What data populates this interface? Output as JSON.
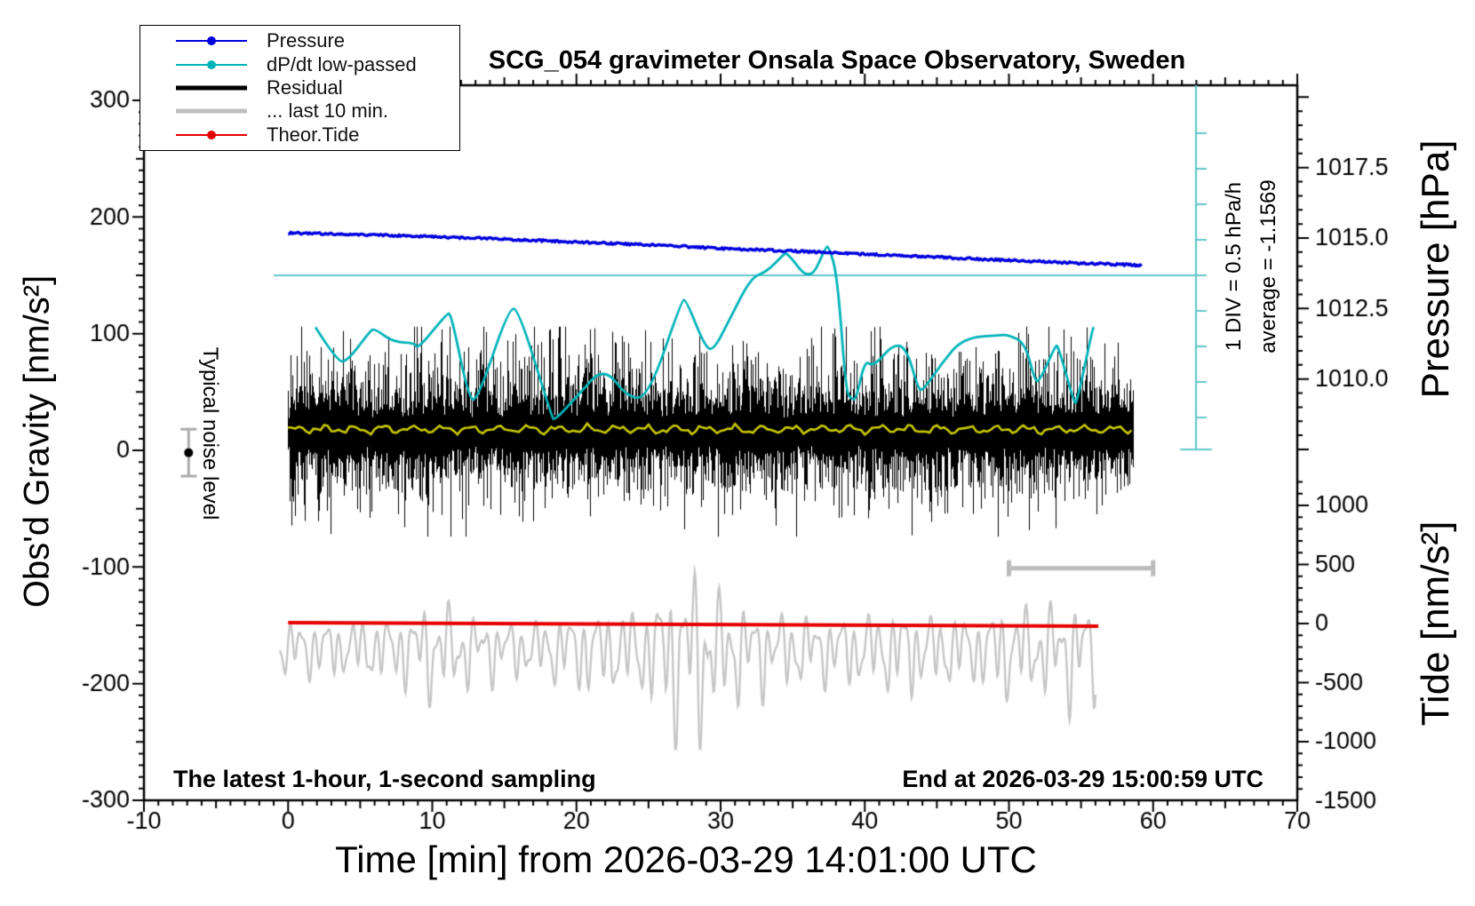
{
  "title": "SCG_054 gravimeter Onsala Space Observatory, Sweden",
  "legend": {
    "items": [
      {
        "label": "Pressure",
        "color": "#0000dd",
        "style": "marker"
      },
      {
        "label": "dP/dt low-passed",
        "color": "#00b3b8",
        "style": "marker"
      },
      {
        "label": "Residual",
        "color": "#000000",
        "style": "thick"
      },
      {
        "label": "... last 10 min.",
        "color": "#c0c0c0",
        "style": "thick"
      },
      {
        "label": "Theor.Tide",
        "color": "#e60000",
        "style": "marker"
      }
    ]
  },
  "axes": {
    "x": {
      "title": "Time [min] from 2026-03-29 14:01:00 UTC",
      "min": -10,
      "max": 70,
      "major": 10,
      "medium": 5,
      "minor": 1,
      "labels": [
        "-10",
        "0",
        "10",
        "20",
        "30",
        "40",
        "50",
        "60",
        "70"
      ]
    },
    "gravity": {
      "title": "Obs'd Gravity [nm/s²]",
      "min": -300,
      "max": 300,
      "major": 100,
      "minor": 10,
      "labels": [
        "300",
        "200",
        "100",
        "0",
        "-100",
        "-200",
        "-300"
      ]
    },
    "pressure": {
      "title": "Pressure [hPa]",
      "major": 2.5,
      "minor": 0.5,
      "labels": [
        "1017.5",
        "1015.0",
        "1012.5",
        "1010.0"
      ]
    },
    "tide": {
      "title": "Tide [nm/s²]",
      "major": 500,
      "minor": 100,
      "labels": [
        "1000",
        "500",
        "0",
        "-500",
        "-1000",
        "-1500"
      ]
    }
  },
  "annotations": {
    "noise_level": "Typical noise level",
    "div_scale": "1 DIV = 0.5 hPa/h",
    "average": "average = -1.1569",
    "sampling_note": "The latest 1-hour, 1-second sampling",
    "end_note": "End at 2026-03-29 15:00:59 UTC"
  },
  "chart_data": {
    "type": "line",
    "x_range_min": [
      -10,
      70
    ],
    "gravity_range": [
      -300,
      300
    ],
    "grid": false,
    "legend_position": "top-left",
    "series": [
      {
        "name": "Pressure",
        "unit": "hPa",
        "color": "#0000dd",
        "points": [
          [
            0,
            1015.18
          ],
          [
            5,
            1015.12
          ],
          [
            10,
            1015.05
          ],
          [
            15,
            1014.96
          ],
          [
            20,
            1014.86
          ],
          [
            25,
            1014.76
          ],
          [
            30,
            1014.63
          ],
          [
            35,
            1014.54
          ],
          [
            40,
            1014.43
          ],
          [
            45,
            1014.32
          ],
          [
            50,
            1014.21
          ],
          [
            55,
            1014.11
          ],
          [
            59.3,
            1014.03
          ]
        ]
      },
      {
        "name": "dP/dt low-passed",
        "unit": "hPa/h",
        "color": "#00b3b8",
        "div_hpa_per_h": 0.5,
        "points": [
          [
            1.9,
            -0.73
          ],
          [
            3.4,
            -1.21
          ],
          [
            4.1,
            -1.21
          ],
          [
            5.7,
            -0.78
          ],
          [
            6.0,
            -0.75
          ],
          [
            7.3,
            -0.94
          ],
          [
            8.8,
            -0.95
          ],
          [
            9.0,
            -1.04
          ],
          [
            11.0,
            -0.54
          ],
          [
            11.3,
            -0.53
          ],
          [
            12.5,
            -1.71
          ],
          [
            13.1,
            -1.78
          ],
          [
            15.3,
            -0.46
          ],
          [
            16.0,
            -0.48
          ],
          [
            18.3,
            -2.0
          ],
          [
            18.5,
            -2.04
          ],
          [
            20.1,
            -1.69
          ],
          [
            21.9,
            -1.28
          ],
          [
            23.6,
            -1.73
          ],
          [
            25.0,
            -1.71
          ],
          [
            27.3,
            -0.35
          ],
          [
            27.6,
            -0.34
          ],
          [
            28.9,
            -1.0
          ],
          [
            29.5,
            -1.06
          ],
          [
            30.6,
            -0.63
          ],
          [
            32.1,
            -0.03
          ],
          [
            33.2,
            0.05
          ],
          [
            34.3,
            0.28
          ],
          [
            34.6,
            0.33
          ],
          [
            36.2,
            -0.1
          ],
          [
            37.3,
            0.4
          ],
          [
            37.5,
            0.41
          ],
          [
            38.1,
            0.0
          ],
          [
            38.7,
            -1.65
          ],
          [
            39.1,
            -1.74
          ],
          [
            39.4,
            -1.75
          ],
          [
            40.0,
            -1.19
          ],
          [
            40.6,
            -1.29
          ],
          [
            42.0,
            -0.96
          ],
          [
            42.9,
            -1.03
          ],
          [
            43.7,
            -1.59
          ],
          [
            44.0,
            -1.63
          ],
          [
            45.3,
            -1.25
          ],
          [
            46.8,
            -0.88
          ],
          [
            49.5,
            -0.84
          ],
          [
            49.9,
            -0.84
          ],
          [
            51.1,
            -0.94
          ],
          [
            51.8,
            -1.48
          ],
          [
            52.1,
            -1.5
          ],
          [
            53.2,
            -1.0
          ],
          [
            53.4,
            -0.98
          ],
          [
            54.5,
            -1.78
          ],
          [
            54.7,
            -1.81
          ],
          [
            55.8,
            -0.75
          ],
          [
            55.9,
            -0.73
          ]
        ]
      },
      {
        "name": "Residual",
        "unit": "nm/s2",
        "color": "#000000",
        "band": {
          "t_start": 0,
          "t_end": 58.6,
          "mean": 15,
          "sigma": 27,
          "max": 106,
          "min": -74
        }
      },
      {
        "name": "Residual low-passed",
        "unit": "nm/s2",
        "color": "#c8c800",
        "points": [
          [
            0,
            18
          ],
          [
            58.6,
            18
          ]
        ]
      },
      {
        "name": "... last 10 min.",
        "unit": "nm/s2 tide scale",
        "color": "#c6c6c6",
        "offset": -185,
        "envelope": [
          [
            -0.5,
            250
          ],
          [
            4,
            250
          ],
          [
            8,
            300
          ],
          [
            9.5,
            430
          ],
          [
            11.5,
            430
          ],
          [
            13,
            280
          ],
          [
            16,
            260
          ],
          [
            19,
            300
          ],
          [
            20,
            360
          ],
          [
            23,
            360
          ],
          [
            25,
            420
          ],
          [
            26.5,
            650
          ],
          [
            27.8,
            820
          ],
          [
            29,
            830
          ],
          [
            30,
            520
          ],
          [
            32,
            400
          ],
          [
            34,
            350
          ],
          [
            37,
            300
          ],
          [
            40,
            330
          ],
          [
            43,
            380
          ],
          [
            45,
            330
          ],
          [
            48,
            300
          ],
          [
            50,
            430
          ],
          [
            52,
            400
          ],
          [
            54,
            480
          ],
          [
            56,
            420
          ]
        ]
      },
      {
        "name": "Theor.Tide",
        "unit": "nm/s2 tide scale",
        "color": "#e60000",
        "points": [
          [
            0,
            8
          ],
          [
            56.2,
            -22
          ]
        ]
      }
    ],
    "markers": {
      "noise_marker": {
        "t": -6.9,
        "gravity": -2,
        "error": 20
      },
      "last10_bracket": {
        "t_start": 50,
        "t_end": 60,
        "gravity": -101
      },
      "dpdt_zero_reference": 0
    }
  }
}
